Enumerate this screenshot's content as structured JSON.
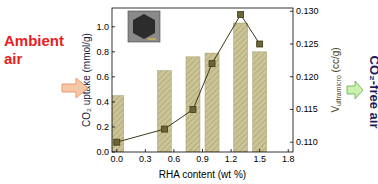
{
  "chart_data": {
    "type": "bar",
    "x_label": "RHA content (wt %)",
    "y_label": "CO₂ uptake (mmol/g)",
    "y2_label": "Vultramicro (cc/g)",
    "annotations": [
      "Ambient",
      "air",
      "CO₂-free air"
    ],
    "x": [
      0.0,
      0.5,
      0.8,
      1.0,
      1.3,
      1.5
    ],
    "series": [
      {
        "type": "bar",
        "color": "#cbc497",
        "values": [
          0.45,
          0.65,
          0.76,
          0.79,
          1.03,
          0.8
        ]
      },
      {
        "type": "line",
        "axis": "y2",
        "color": "#3f3a18",
        "marker": "square",
        "values": [
          0.11,
          0.112,
          0.115,
          0.122,
          0.1295,
          0.125
        ]
      }
    ],
    "xlim": [
      -0.05,
      1.85
    ],
    "xticks": [
      {
        "value": 0.0,
        "label": "0.0"
      },
      {
        "value": 0.3,
        "label": "0.3"
      },
      {
        "value": 0.6,
        "label": "0.6"
      },
      {
        "value": 0.9,
        "label": "0.9"
      },
      {
        "value": 1.2,
        "label": "1.2"
      },
      {
        "value": 1.5,
        "label": "1.5"
      },
      {
        "value": 1.8,
        "label": "1.8"
      }
    ],
    "ylim": [
      0,
      1.15
    ],
    "yticks": [
      {
        "value": 0.0,
        "label": "0.0"
      },
      {
        "value": 0.2,
        "label": "0.2"
      },
      {
        "value": 0.4,
        "label": "0.4"
      },
      {
        "value": 0.6,
        "label": "0.6"
      },
      {
        "value": 0.8,
        "label": "0.8"
      },
      {
        "value": 1.0,
        "label": "1.0"
      }
    ],
    "y2lim": [
      0.1085,
      0.1305
    ],
    "y2ticks": [
      {
        "value": 0.11,
        "label": "0.110"
      },
      {
        "value": 0.115,
        "label": "0.115"
      },
      {
        "value": 0.12,
        "label": "0.120"
      },
      {
        "value": 0.125,
        "label": "0.125"
      },
      {
        "value": 0.13,
        "label": "0.130"
      }
    ]
  }
}
